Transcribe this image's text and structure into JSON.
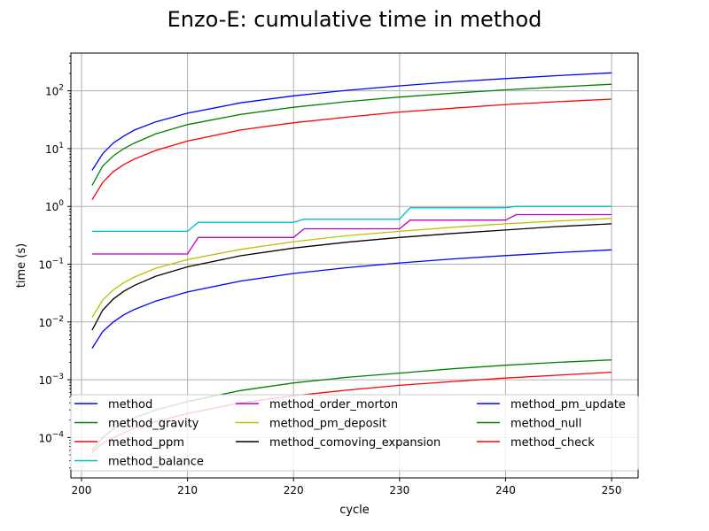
{
  "chart_data": {
    "type": "line",
    "title": "Enzo-E: cumulative time in method",
    "xlabel": "cycle",
    "ylabel": "time (s)",
    "xlim": [
      199,
      252.5
    ],
    "ylim": [
      2e-05,
      450
    ],
    "yscale": "log",
    "grid": true,
    "legend_position": "lower-center",
    "x_ticks": [
      200,
      210,
      220,
      230,
      240,
      250
    ],
    "x_tick_labels": [
      "200",
      "210",
      "220",
      "230",
      "240",
      "250"
    ],
    "y_ticks": [
      0.0001,
      0.001,
      0.01,
      0.1,
      1,
      10,
      100
    ],
    "y_tick_labels": [
      {
        "base": "10",
        "exp": "−4"
      },
      {
        "base": "10",
        "exp": "−3"
      },
      {
        "base": "10",
        "exp": "−2"
      },
      {
        "base": "10",
        "exp": "−1"
      },
      {
        "base": "10",
        "exp": "0"
      },
      {
        "base": "10",
        "exp": "1"
      },
      {
        "base": "10",
        "exp": "2"
      }
    ],
    "series": [
      {
        "name": "method",
        "color": "#0000ff",
        "x": [
          201,
          202,
          203,
          204,
          205,
          207,
          210,
          215,
          220,
          225,
          230,
          235,
          240,
          245,
          250
        ],
        "y": [
          4.2,
          8.2,
          12.5,
          16.5,
          21,
          29,
          41,
          62,
          82,
          102,
          122,
          143,
          163,
          184,
          205
        ]
      },
      {
        "name": "method_gravity",
        "color": "#008000",
        "x": [
          201,
          202,
          203,
          204,
          205,
          207,
          210,
          215,
          220,
          225,
          230,
          235,
          240,
          245,
          250
        ],
        "y": [
          2.3,
          5.0,
          7.5,
          10,
          12.5,
          18,
          26,
          39,
          52,
          65,
          78,
          91,
          104,
          117,
          130
        ]
      },
      {
        "name": "method_ppm",
        "color": "#ff0000",
        "x": [
          201,
          202,
          203,
          204,
          205,
          207,
          210,
          215,
          220,
          225,
          230,
          235,
          240,
          245,
          250
        ],
        "y": [
          1.3,
          2.6,
          4.0,
          5.3,
          6.6,
          9.3,
          13.5,
          21,
          28,
          35,
          43,
          50,
          58,
          65,
          72
        ]
      },
      {
        "name": "method_balance",
        "color": "#00bfbf",
        "x": [
          201,
          210,
          211,
          220,
          221,
          230,
          231,
          240,
          241,
          250
        ],
        "y": [
          0.37,
          0.37,
          0.53,
          0.53,
          0.6,
          0.6,
          0.95,
          0.95,
          1.0,
          1.0
        ]
      },
      {
        "name": "method_order_morton",
        "color": "#bf00bf",
        "x": [
          201,
          210,
          211,
          220,
          221,
          230,
          231,
          240,
          241,
          250
        ],
        "y": [
          0.15,
          0.15,
          0.29,
          0.29,
          0.41,
          0.41,
          0.58,
          0.58,
          0.72,
          0.72
        ]
      },
      {
        "name": "method_pm_deposit",
        "color": "#bfbf00",
        "x": [
          201,
          202,
          203,
          204,
          205,
          207,
          210,
          215,
          220,
          225,
          230,
          235,
          240,
          245,
          250
        ],
        "y": [
          0.012,
          0.024,
          0.036,
          0.048,
          0.06,
          0.085,
          0.12,
          0.18,
          0.245,
          0.31,
          0.37,
          0.435,
          0.5,
          0.56,
          0.62
        ]
      },
      {
        "name": "method_comoving_expansion",
        "color": "#000000",
        "x": [
          201,
          202,
          203,
          204,
          205,
          207,
          210,
          215,
          220,
          225,
          230,
          235,
          240,
          245,
          250
        ],
        "y": [
          0.0072,
          0.016,
          0.025,
          0.034,
          0.043,
          0.062,
          0.09,
          0.14,
          0.19,
          0.24,
          0.29,
          0.34,
          0.39,
          0.45,
          0.5
        ]
      },
      {
        "name": "method_pm_update",
        "color": "#0000ff",
        "x": [
          201,
          202,
          203,
          204,
          205,
          207,
          210,
          215,
          220,
          225,
          230,
          235,
          240,
          245,
          250
        ],
        "y": [
          0.0035,
          0.0068,
          0.01,
          0.0133,
          0.0165,
          0.023,
          0.033,
          0.051,
          0.069,
          0.087,
          0.105,
          0.123,
          0.141,
          0.159,
          0.177
        ]
      },
      {
        "name": "method_null",
        "color": "#008000",
        "x": [
          201,
          202,
          203,
          204,
          205,
          207,
          210,
          215,
          220,
          225,
          230,
          235,
          240,
          245,
          250
        ],
        "y": [
          6e-05,
          0.0001,
          0.00014,
          0.00018,
          0.00022,
          0.0003,
          0.00042,
          0.00065,
          0.00088,
          0.0011,
          0.0013,
          0.00155,
          0.00178,
          0.002,
          0.0022
        ]
      },
      {
        "name": "method_check",
        "color": "#ff0000",
        "x": [
          201,
          202,
          203,
          204,
          205,
          207,
          210,
          215,
          220,
          225,
          230,
          235,
          240,
          245,
          250
        ],
        "y": [
          5.5e-05,
          8e-05,
          0.0001,
          0.00012,
          0.000145,
          0.00019,
          0.00026,
          0.0004,
          0.00053,
          0.00066,
          0.0008,
          0.00093,
          0.00107,
          0.0012,
          0.00135
        ]
      }
    ]
  }
}
